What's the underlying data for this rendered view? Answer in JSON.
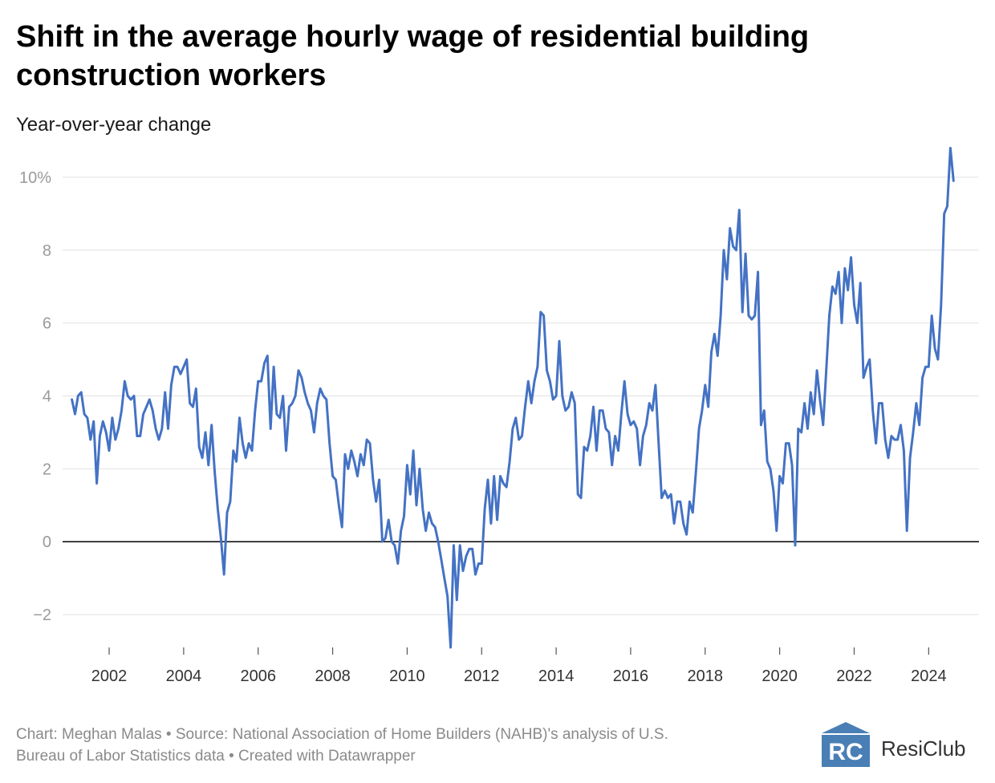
{
  "title": "Shift in the average hourly wage of residential building construction workers",
  "subtitle": "Year-over-year change",
  "footer": {
    "line1": "Chart: Meghan Malas • Source: National Association of Home Builders (NAHB)'s analysis of U.S.",
    "line2": "Bureau of Labor Statistics data • Created with Datawrapper"
  },
  "brand": {
    "name": "ResiClub",
    "logo_letters": "RC",
    "color": "#4a7fb5"
  },
  "colors": {
    "line": "#4472c4",
    "grid": "#e2e2e2",
    "zero": "#000000",
    "tick": "#9a9a9a"
  },
  "chart_data": {
    "type": "line",
    "title": "Shift in the average hourly wage of residential building construction workers",
    "subtitle": "Year-over-year change",
    "ylabel": "Year-over-year change",
    "ylim": [
      -2.9,
      10.9
    ],
    "yticks": [
      -2,
      0,
      2,
      4,
      6,
      8,
      10
    ],
    "ytick_labels": [
      "−2",
      "0",
      "2",
      "4",
      "6",
      "8",
      "10%"
    ],
    "xlim": [
      2000.75,
      2025.35
    ],
    "xticks": [
      2002,
      2004,
      2006,
      2008,
      2010,
      2012,
      2014,
      2016,
      2018,
      2020,
      2022,
      2024
    ],
    "xtick_labels": [
      "2002",
      "2004",
      "2006",
      "2008",
      "2010",
      "2012",
      "2014",
      "2016",
      "2018",
      "2020",
      "2022",
      "2024"
    ],
    "grid": true,
    "legend": "none",
    "series": [
      {
        "name": "Year-over-year change in average hourly wage",
        "start": 2001.0,
        "step": 0.0833333,
        "values": [
          3.9,
          3.5,
          4.0,
          4.1,
          3.5,
          3.4,
          2.8,
          3.3,
          1.6,
          2.9,
          3.3,
          3.0,
          2.5,
          3.4,
          2.8,
          3.1,
          3.6,
          4.4,
          4.0,
          3.9,
          4.0,
          2.9,
          2.9,
          3.5,
          3.7,
          3.9,
          3.6,
          3.1,
          2.8,
          3.1,
          4.1,
          3.1,
          4.3,
          4.8,
          4.8,
          4.6,
          4.8,
          5.0,
          3.8,
          3.7,
          4.2,
          2.6,
          2.3,
          3.0,
          2.1,
          3.2,
          1.9,
          0.9,
          0.1,
          -0.9,
          0.8,
          1.1,
          2.5,
          2.2,
          3.4,
          2.7,
          2.3,
          2.7,
          2.5,
          3.6,
          4.4,
          4.4,
          4.9,
          5.1,
          3.1,
          4.8,
          3.5,
          3.4,
          4.0,
          2.5,
          3.7,
          3.8,
          4.0,
          4.7,
          4.5,
          4.1,
          3.8,
          3.6,
          3.0,
          3.8,
          4.2,
          4.0,
          3.9,
          2.7,
          1.8,
          1.7,
          1.0,
          0.4,
          2.4,
          2.0,
          2.5,
          2.2,
          1.8,
          2.4,
          2.1,
          2.8,
          2.7,
          1.7,
          1.1,
          1.7,
          0.0,
          0.1,
          0.6,
          0.0,
          -0.1,
          -0.6,
          0.3,
          0.7,
          2.1,
          1.3,
          2.5,
          1.0,
          2.0,
          0.9,
          0.3,
          0.8,
          0.5,
          0.4,
          0.0,
          -0.5,
          -1.0,
          -1.5,
          -2.9,
          -0.1,
          -1.6,
          -0.1,
          -0.8,
          -0.4,
          -0.2,
          -0.2,
          -0.9,
          -0.6,
          -0.6,
          0.9,
          1.7,
          0.5,
          1.8,
          0.6,
          1.8,
          1.6,
          1.5,
          2.2,
          3.1,
          3.4,
          2.8,
          2.9,
          3.7,
          4.4,
          3.8,
          4.4,
          4.8,
          6.3,
          6.2,
          4.7,
          4.4,
          3.9,
          4.0,
          5.5,
          4.0,
          3.6,
          3.7,
          4.1,
          3.8,
          1.3,
          1.2,
          2.6,
          2.5,
          2.9,
          3.7,
          2.5,
          3.6,
          3.6,
          3.1,
          3.0,
          2.1,
          2.9,
          2.5,
          3.5,
          4.4,
          3.5,
          3.2,
          3.3,
          3.1,
          2.1,
          2.9,
          3.2,
          3.8,
          3.6,
          4.3,
          2.7,
          1.2,
          1.4,
          1.2,
          1.3,
          0.5,
          1.1,
          1.1,
          0.5,
          0.2,
          1.1,
          0.8,
          1.9,
          3.1,
          3.6,
          4.3,
          3.7,
          5.2,
          5.7,
          5.1,
          6.2,
          8.0,
          7.2,
          8.6,
          8.1,
          8.0,
          9.1,
          6.3,
          7.9,
          6.2,
          6.1,
          6.2,
          7.4,
          3.2,
          3.6,
          2.2,
          2.0,
          1.4,
          0.3,
          1.8,
          1.6,
          2.7,
          2.7,
          2.1,
          -0.1,
          3.1,
          3.0,
          3.8,
          3.1,
          4.1,
          3.5,
          4.7,
          3.9,
          3.2,
          4.7,
          6.2,
          7.0,
          6.8,
          7.4,
          6.0,
          7.5,
          6.9,
          7.8,
          6.5,
          6.0,
          7.1,
          4.5,
          4.8,
          5.0,
          3.6,
          2.7,
          3.8,
          3.8,
          2.8,
          2.3,
          2.9,
          2.8,
          2.8,
          3.2,
          2.5,
          0.3,
          2.3,
          3.0,
          3.8,
          3.2,
          4.5,
          4.8,
          4.8,
          6.2,
          5.3,
          5.0,
          6.5,
          9.0,
          9.2,
          10.8,
          9.9
        ]
      }
    ]
  }
}
